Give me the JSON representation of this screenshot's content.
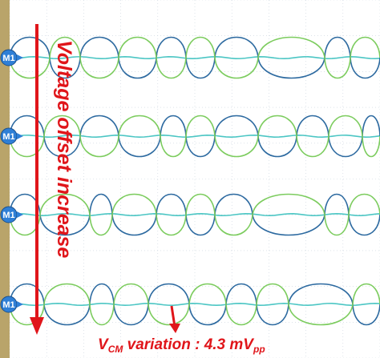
{
  "colors": {
    "background": "#ffffff",
    "grid": "#c8d2dc",
    "left_bar": "#b9a46a",
    "signal_p": "#2d6aa0",
    "signal_n": "#7ccc5e",
    "common_mode": "#4cc6c4",
    "marker_fill": "#2f7fd6",
    "annotation": "#e0151a"
  },
  "markers": [
    {
      "label": "M1",
      "icon": "marker-arrow-icon"
    },
    {
      "label": "M1",
      "icon": "marker-arrow-icon"
    },
    {
      "label": "M1",
      "icon": "marker-arrow-icon"
    },
    {
      "label": "M1",
      "icon": "marker-arrow-icon"
    }
  ],
  "annotation": {
    "vertical_text": "Voltage offset increase",
    "vcm_prefix": "V",
    "vcm_sub": "CM",
    "vcm_text": " variation : 4.3 mV",
    "vcm_unit_sub": "pp"
  }
}
